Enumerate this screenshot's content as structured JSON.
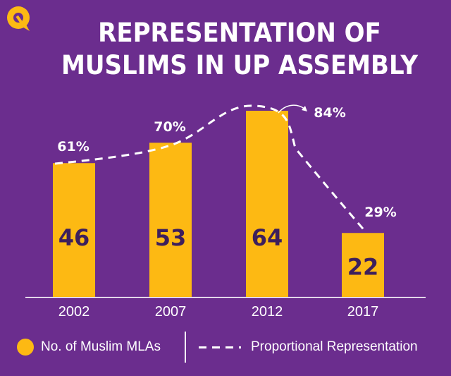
{
  "title": {
    "line1": "REPRESENTATION OF",
    "line2": "MUSLIMS IN UP ASSEMBLY"
  },
  "legend": {
    "bars": "No. of Muslim MLAs",
    "line": "Proportional Representation"
  },
  "colors": {
    "background": "#6b2d8e",
    "bar": "#fdb913",
    "bar_label": "#3d1f5c",
    "line": "#ffffff",
    "text": "#ffffff"
  },
  "icons": {
    "logo": "quint-logo-icon"
  },
  "chart_data": {
    "type": "bar",
    "categories": [
      "2002",
      "2007",
      "2012",
      "2017"
    ],
    "series": [
      {
        "name": "No. of Muslim MLAs",
        "values": [
          46,
          53,
          64,
          22
        ],
        "kind": "bar"
      },
      {
        "name": "Proportional Representation",
        "values": [
          61,
          70,
          84,
          29
        ],
        "kind": "line",
        "value_labels": [
          "61%",
          "70%",
          "84%",
          "29%"
        ]
      }
    ],
    "ylim": [
      0,
      70
    ],
    "grid": false,
    "legend_position": "bottom"
  }
}
